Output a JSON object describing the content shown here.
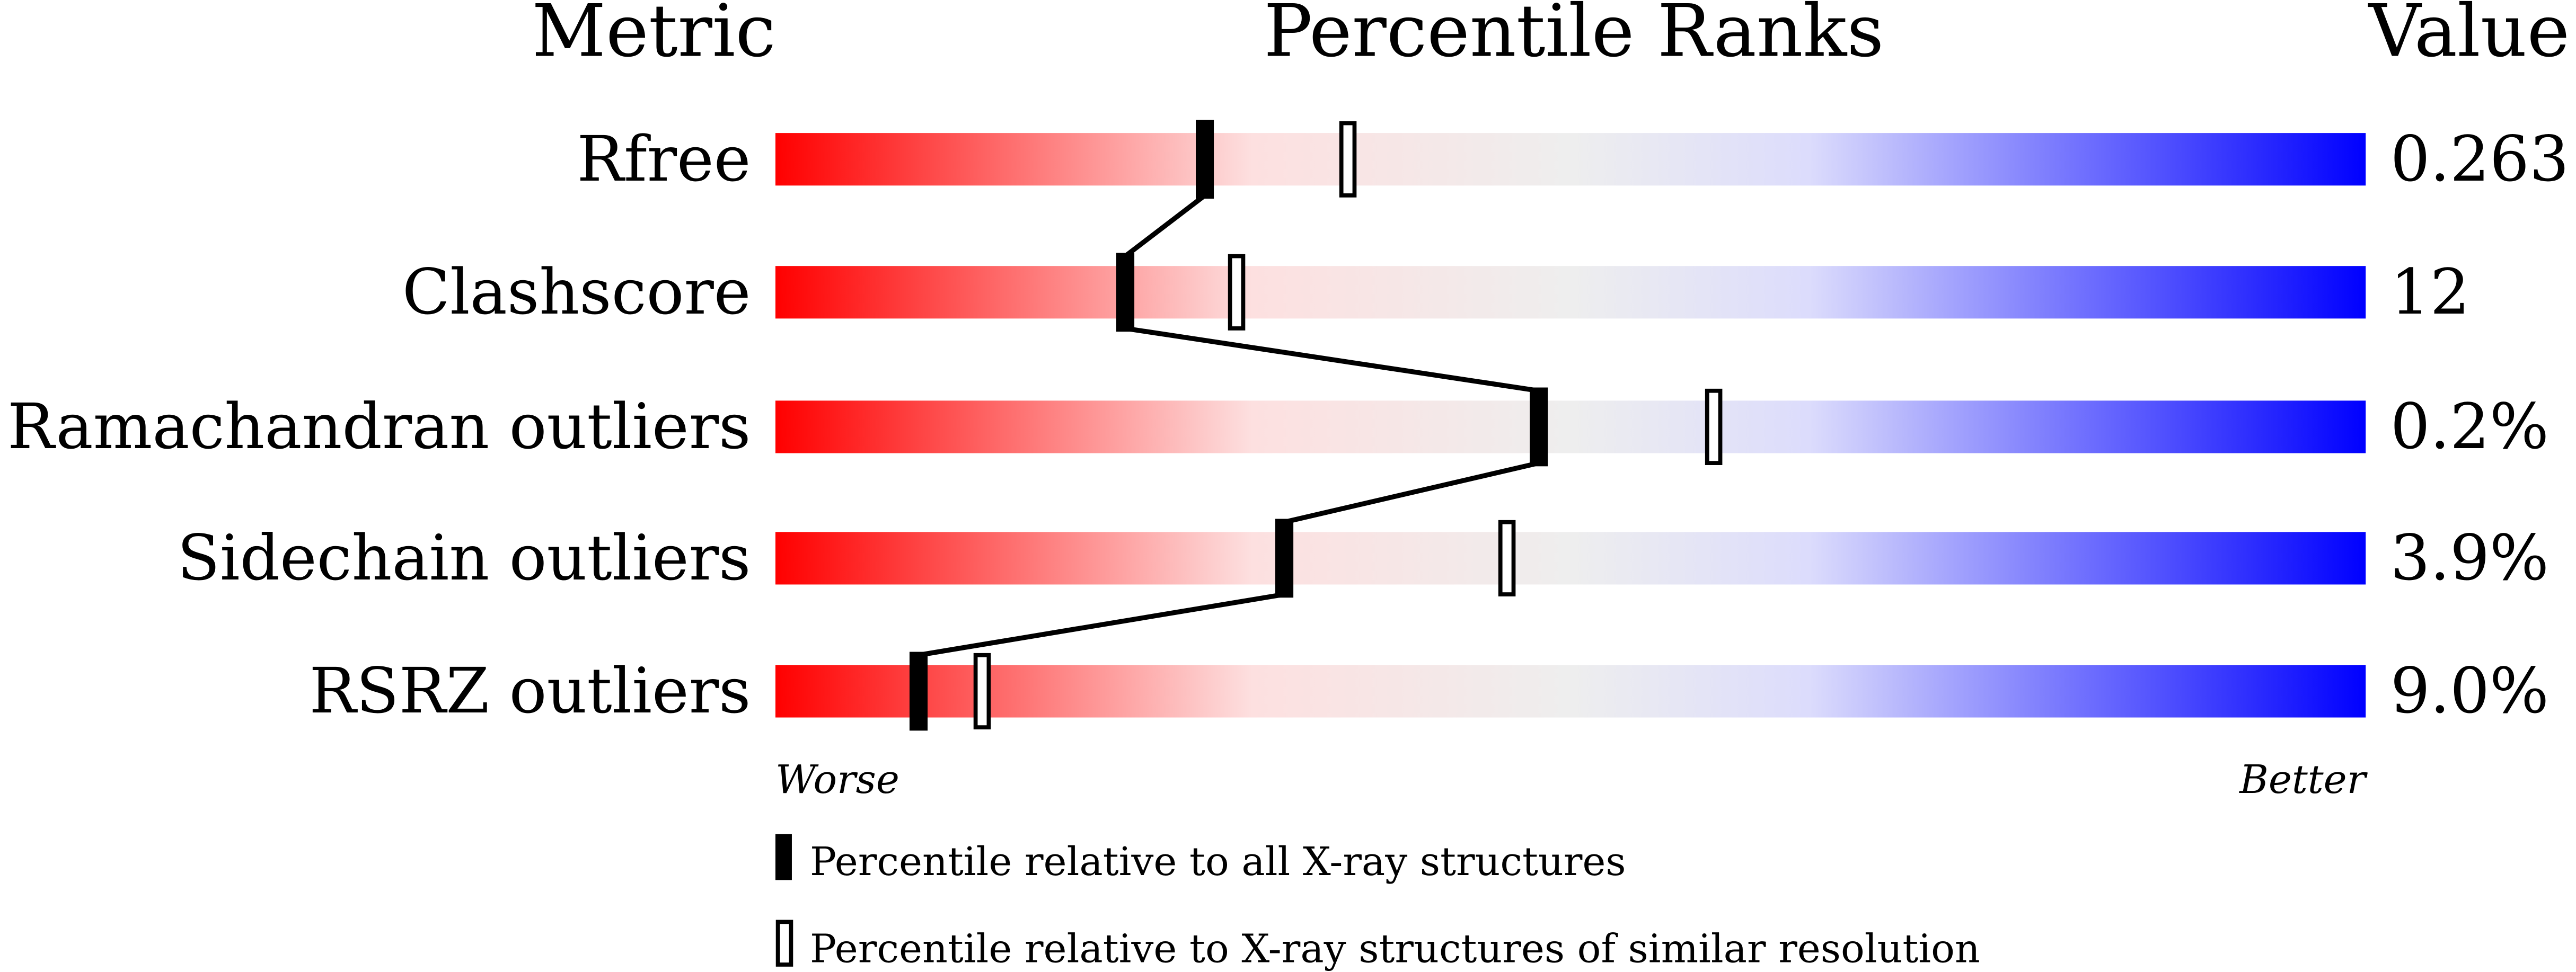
{
  "chart_data": {
    "type": "percentile-ranks",
    "headers": {
      "metric": "Metric",
      "ranks": "Percentile Ranks",
      "value": "Value"
    },
    "axis": {
      "worse_label": "Worse",
      "better_label": "Better",
      "range": [
        0,
        100
      ]
    },
    "gradient_colors": [
      "#ff0000",
      "#fde0e0",
      "#eeeeee",
      "#dcdcfc",
      "#0000ff"
    ],
    "metrics": [
      {
        "name": "Rfree",
        "value": "0.263",
        "percentile_all": 27,
        "percentile_similar": 36
      },
      {
        "name": "Clashscore",
        "value": "12",
        "percentile_all": 22,
        "percentile_similar": 29
      },
      {
        "name": "Ramachandran outliers",
        "value": "0.2%",
        "percentile_all": 48,
        "percentile_similar": 59
      },
      {
        "name": "Sidechain outliers",
        "value": "3.9%",
        "percentile_all": 32,
        "percentile_similar": 46
      },
      {
        "name": "RSRZ outliers",
        "value": "9.0%",
        "percentile_all": 9,
        "percentile_similar": 13
      }
    ],
    "legend": [
      {
        "marker": "filled",
        "label": "Percentile relative to all X-ray structures"
      },
      {
        "marker": "open",
        "label": "Percentile relative to X-ray structures of similar resolution"
      }
    ]
  }
}
